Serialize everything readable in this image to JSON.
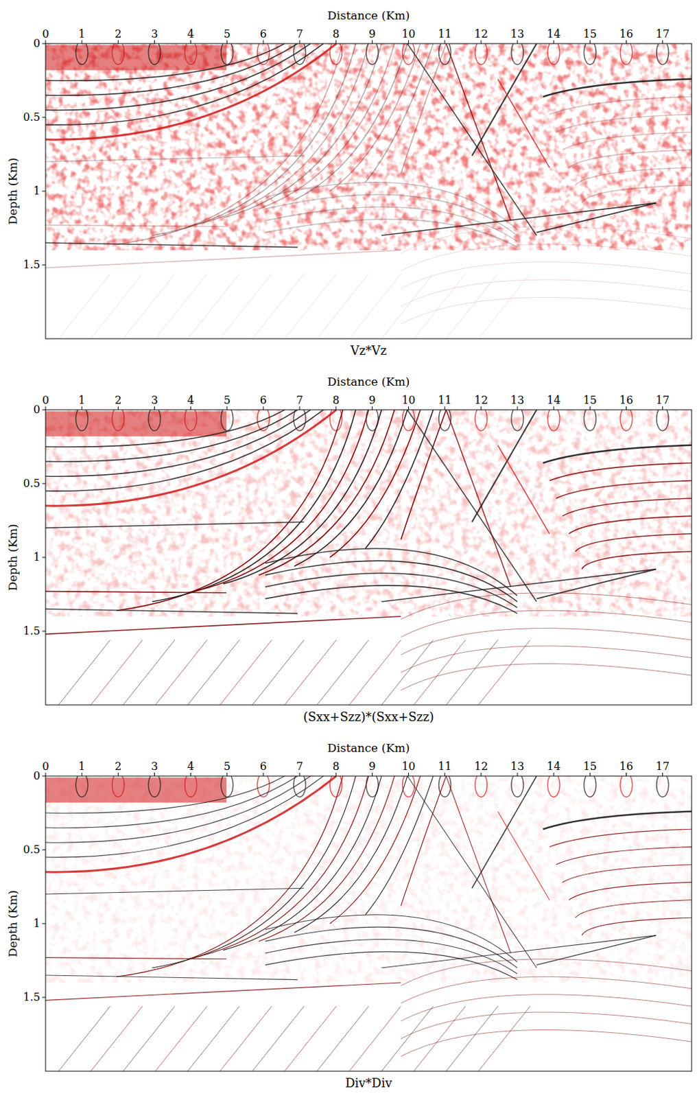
{
  "chart_data": [
    {
      "type": "image",
      "title": "Vz*Vz",
      "x_label": "Distance (Km)",
      "y_label": "Depth (Km)",
      "xlim": [
        0,
        17.8
      ],
      "ylim": [
        0,
        2
      ],
      "xticks": [
        0,
        1,
        2,
        3,
        4,
        5,
        6,
        7,
        8,
        9,
        10,
        11,
        12,
        13,
        14,
        15,
        16,
        17
      ],
      "yticks": [
        0,
        0.5,
        1,
        1.5
      ]
    },
    {
      "type": "image",
      "title": "(Sxx+Szz)*(Sxx+Szz)",
      "x_label": "Distance (Km)",
      "y_label": "Depth (Km)",
      "xlim": [
        0,
        17.8
      ],
      "ylim": [
        0,
        2
      ],
      "xticks": [
        0,
        1,
        2,
        3,
        4,
        5,
        6,
        7,
        8,
        9,
        10,
        11,
        12,
        13,
        14,
        15,
        16,
        17
      ],
      "yticks": [
        0,
        0.5,
        1,
        1.5
      ]
    },
    {
      "type": "image",
      "title": "Div*Div",
      "x_label": "Distance (Km)",
      "y_label": "Depth (Km)",
      "xlim": [
        0,
        17.8
      ],
      "ylim": [
        0,
        2
      ],
      "xticks": [
        0,
        1,
        2,
        3,
        4,
        5,
        6,
        7,
        8,
        9,
        10,
        11,
        12,
        13,
        14,
        15,
        16,
        17
      ],
      "yticks": [
        0,
        0.5,
        1,
        1.5
      ]
    }
  ]
}
